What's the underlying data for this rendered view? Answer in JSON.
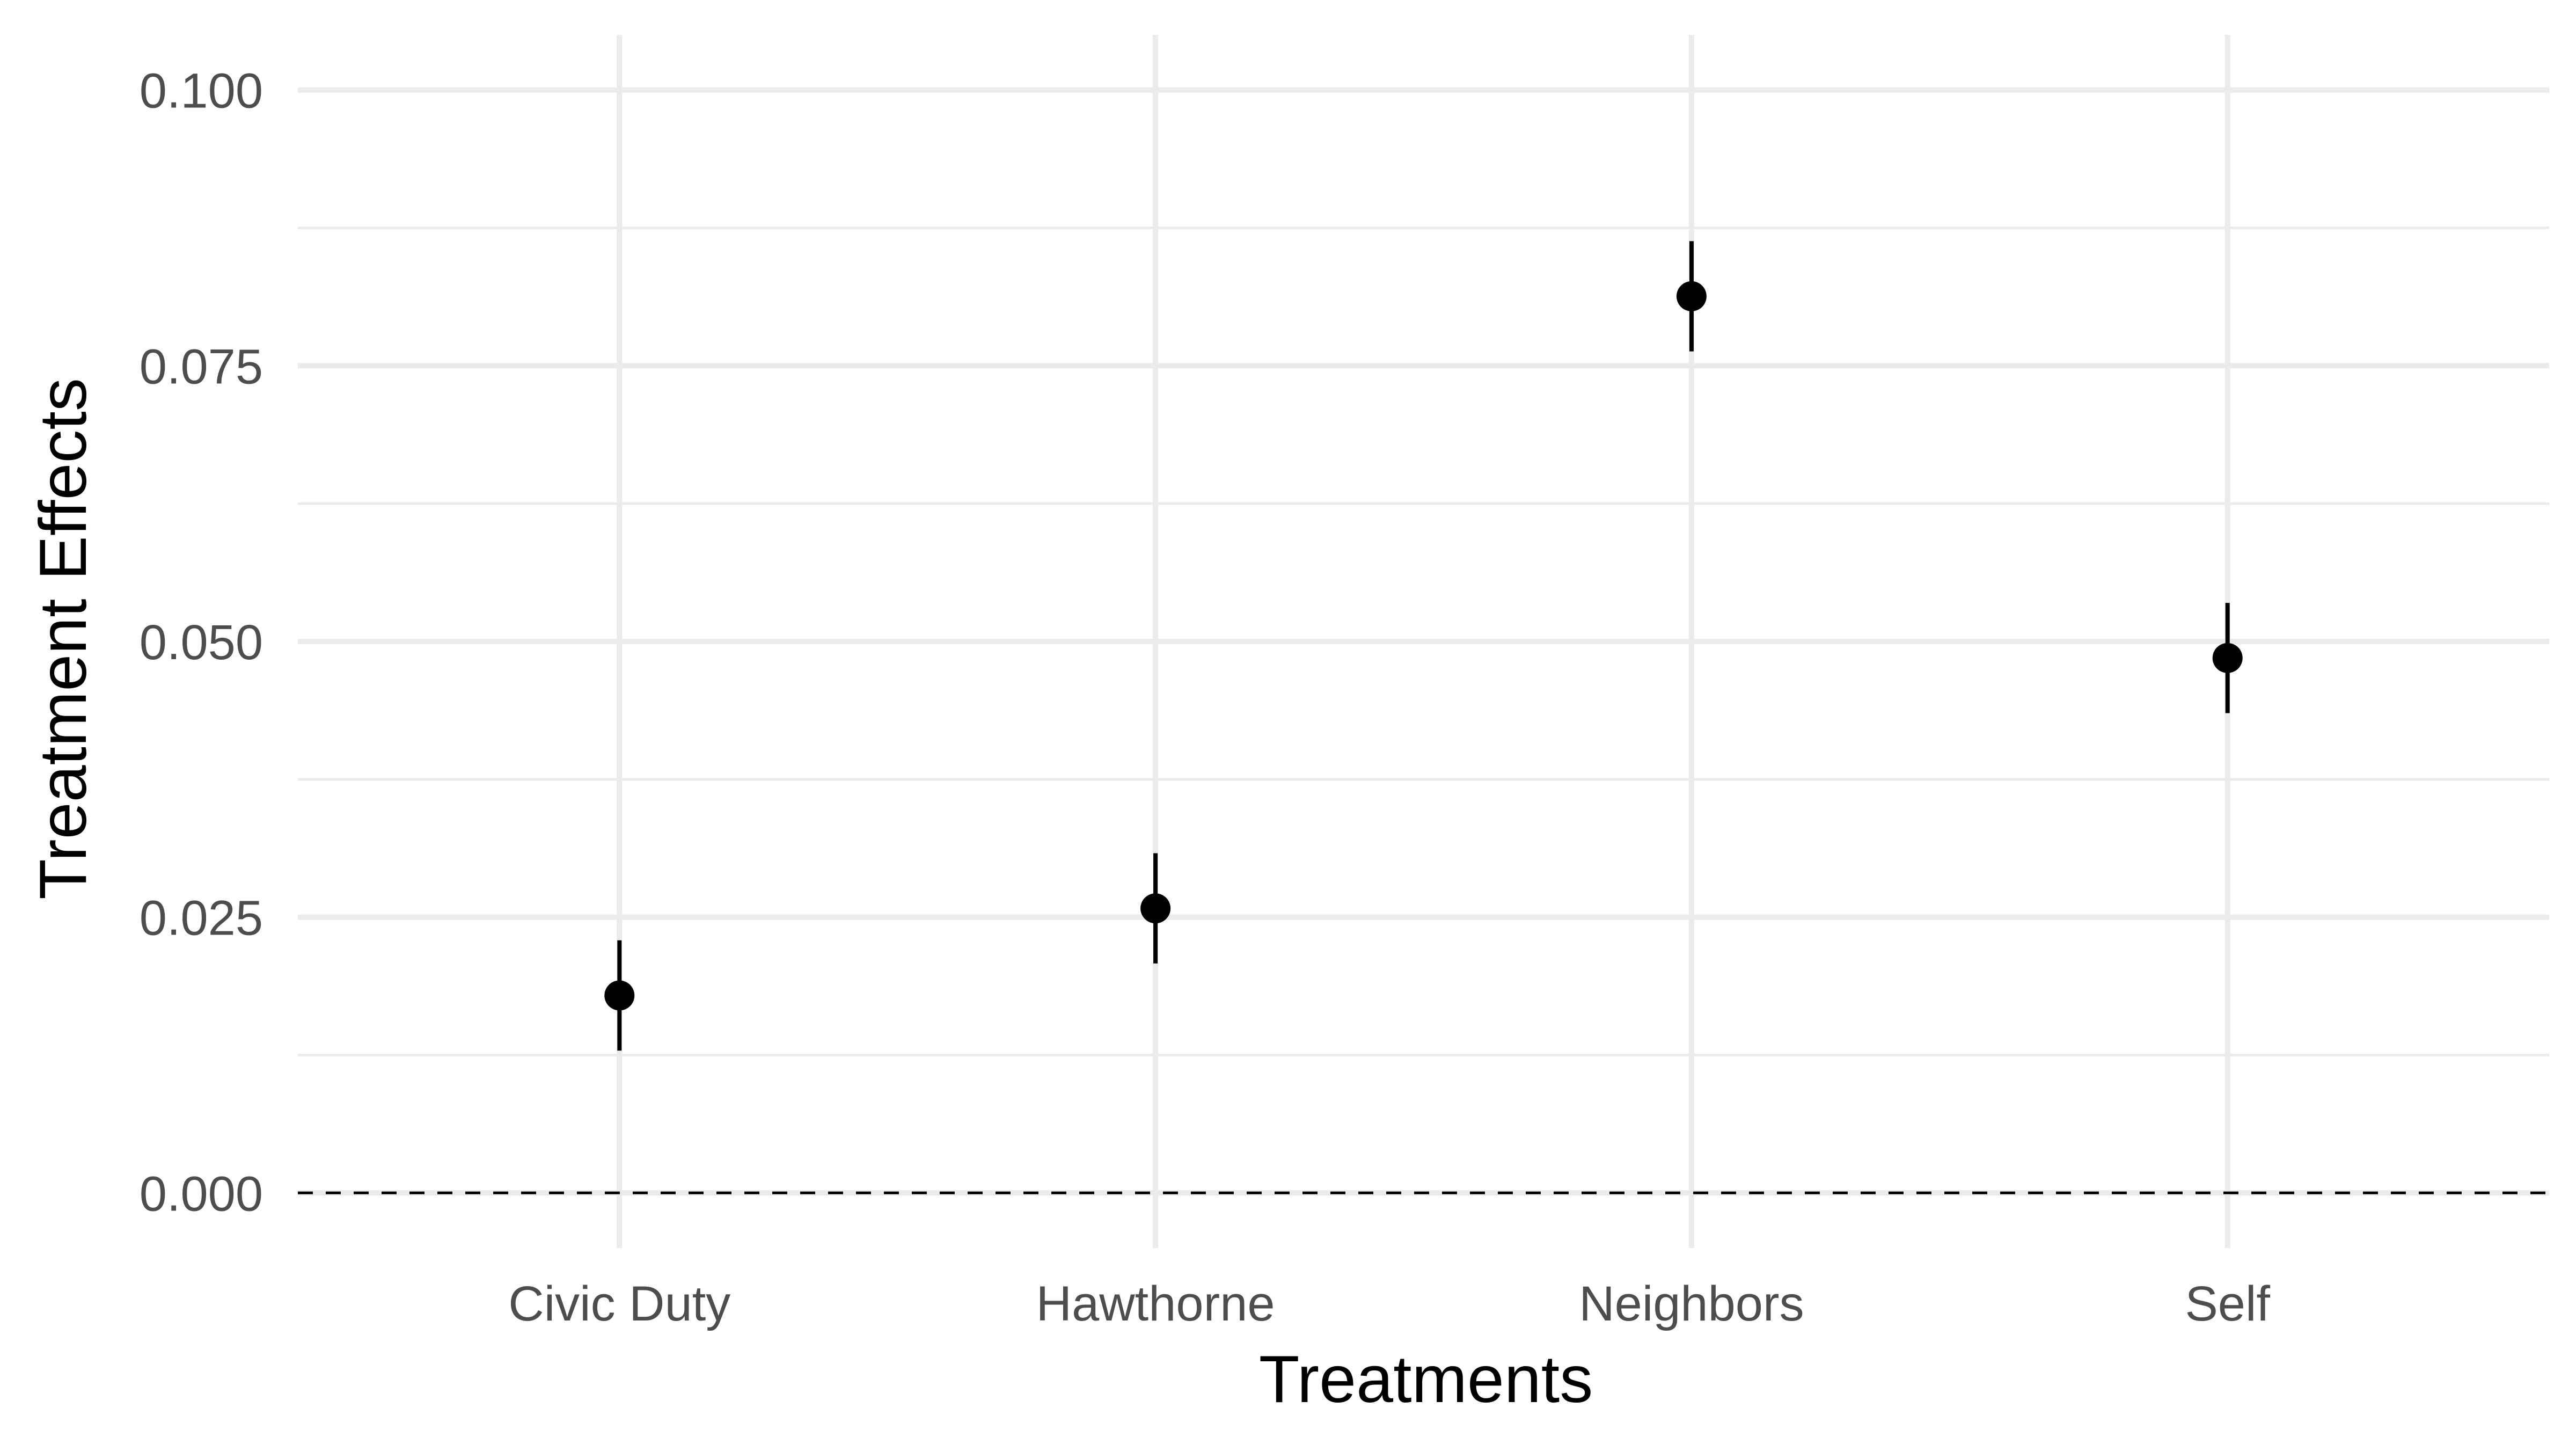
{
  "chart_data": {
    "type": "scatter",
    "title": "",
    "xlabel": "Treatments",
    "ylabel": "Treatment Effects",
    "categories": [
      "Civic Duty",
      "Hawthorne",
      "Neighbors",
      "Self"
    ],
    "series": [
      {
        "values": [
          0.0179,
          0.0258,
          0.0813,
          0.0485
        ],
        "lower": [
          0.0129,
          0.0208,
          0.0763,
          0.0435
        ],
        "upper": [
          0.0229,
          0.0308,
          0.0863,
          0.0535
        ]
      }
    ],
    "ylim": [
      -0.005,
      0.105
    ],
    "y_ticks": [
      "0.000",
      "0.025",
      "0.050",
      "0.075",
      "0.100"
    ],
    "y_tick_values": [
      0,
      0.025,
      0.05,
      0.075,
      0.1
    ],
    "y_minor_tick_values": [
      0.0125,
      0.0375,
      0.0625,
      0.0875
    ],
    "reference_line": {
      "y": 0,
      "style": "dashed",
      "color": "#000000"
    },
    "grid": true,
    "legend": "none",
    "colors": {
      "point": "#000000",
      "grid": "#ebebeb",
      "tick_text": "#4d4d4d",
      "background": "#ffffff"
    }
  }
}
